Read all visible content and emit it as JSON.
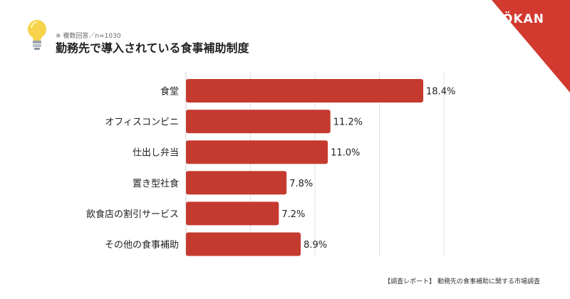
{
  "header": {
    "note": "※ 複数回答／n=1030",
    "title": "勤務先で導入されている食事補助制度",
    "icon": "lightbulb-icon"
  },
  "brand": {
    "logo": "ÖKAN",
    "color": "#d2392f"
  },
  "footer": {
    "source": "【調査レポート】 勤務先の食事補助に関する市場調査"
  },
  "chart_data": {
    "type": "bar",
    "orientation": "horizontal",
    "categories": [
      "食堂",
      "オフィスコンビニ",
      "仕出し弁当",
      "置き型社食",
      "飲食店の割引サービス",
      "その他の食事補助"
    ],
    "values": [
      18.4,
      11.2,
      11.0,
      7.8,
      7.2,
      8.9
    ],
    "value_labels": [
      "18.4%",
      "11.2%",
      "11.0%",
      "7.8%",
      "7.2%",
      "8.9%"
    ],
    "xlim": [
      0,
      20
    ],
    "grid": true,
    "bar_color": "#c53a2f"
  }
}
